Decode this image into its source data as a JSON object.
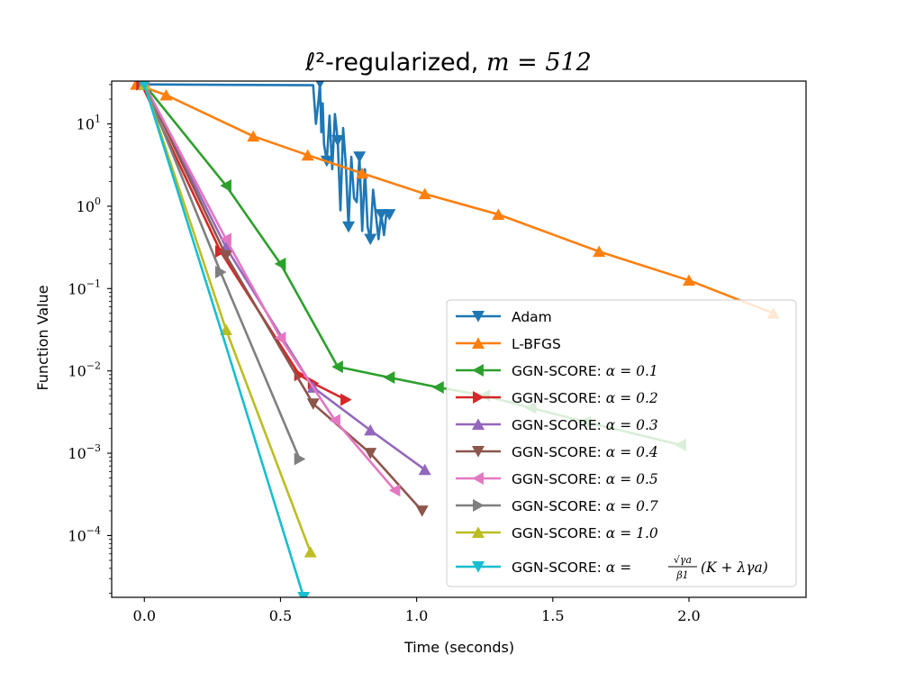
{
  "chart_data": {
    "type": "line",
    "title_prefix": "ℓ²-regularized, ",
    "title_math": "m = 512",
    "xlabel": "Time (seconds)",
    "ylabel": "Function Value",
    "yscale": "log",
    "xlim": [
      -0.12,
      2.43
    ],
    "ylim_log10": [
      -4.75,
      1.52
    ],
    "xticks": [
      0.0,
      0.5,
      1.0,
      1.5,
      2.0
    ],
    "xtick_labels": [
      "0.0",
      "0.5",
      "1.0",
      "1.5",
      "2.0"
    ],
    "yticks_log10": [
      1,
      0,
      -1,
      -2,
      -3,
      -4
    ],
    "ytick_labels": [
      "10",
      "10",
      "10",
      "10",
      "10",
      "10"
    ],
    "ytick_exponents": [
      "1",
      "0",
      "−1",
      "−2",
      "−3",
      "−4"
    ],
    "legend_position": "lower-right",
    "series": [
      {
        "name": "Adam",
        "color": "#1f77b4",
        "marker": "triangle-down",
        "x": [
          0.0,
          0.62,
          0.63,
          0.64,
          0.645,
          0.65,
          0.655,
          0.66,
          0.67,
          0.68,
          0.69,
          0.7,
          0.71,
          0.72,
          0.73,
          0.74,
          0.75,
          0.76,
          0.77,
          0.78,
          0.79,
          0.8,
          0.81,
          0.82,
          0.83,
          0.84,
          0.85,
          0.86,
          0.87,
          0.88,
          0.89,
          0.9
        ],
        "log10_values": [
          1.48,
          1.47,
          1.0,
          1.3,
          1.5,
          0.9,
          1.25,
          0.75,
          0.55,
          1.1,
          0.45,
          1.12,
          0.8,
          -0.05,
          0.95,
          0.5,
          -0.25,
          0.6,
          0.1,
          0.05,
          0.6,
          -0.3,
          0.45,
          -0.25,
          -0.4,
          0.2,
          -0.1,
          -0.4,
          -0.1,
          -0.35,
          -0.05,
          -0.1
        ],
        "marker_every": 4
      },
      {
        "name": "L-BFGS",
        "color": "#ff7f0e",
        "marker": "triangle-up",
        "x": [
          -0.03,
          0.08,
          0.4,
          0.6,
          0.8,
          1.03,
          1.3,
          1.67,
          2.0,
          2.31
        ],
        "log10_values": [
          1.48,
          1.35,
          0.85,
          0.62,
          0.4,
          0.15,
          -0.1,
          -0.55,
          -0.9,
          -1.3
        ],
        "marker_every": 1
      },
      {
        "name": "GGN-SCORE: α = 0.1",
        "label_text": "GGN-SCORE: ",
        "label_math": "α = 0.1",
        "color": "#2ca02c",
        "marker": "triangle-left",
        "x": [
          0.0,
          0.3,
          0.5,
          0.71,
          0.9,
          1.08,
          1.25,
          1.42,
          1.62,
          1.97
        ],
        "log10_values": [
          1.48,
          0.25,
          -0.7,
          -1.95,
          -2.08,
          -2.2,
          -2.3,
          -2.45,
          -2.62,
          -2.9
        ],
        "marker_every": 1
      },
      {
        "name": "GGN-SCORE: α = 0.2",
        "label_text": "GGN-SCORE: ",
        "label_math": "α = 0.2",
        "color": "#d62728",
        "marker": "triangle-right",
        "x": [
          -0.01,
          0.28,
          0.57,
          0.62,
          0.74
        ],
        "log10_values": [
          1.48,
          -0.55,
          -2.05,
          -2.15,
          -2.35
        ],
        "marker_every": 1
      },
      {
        "name": "GGN-SCORE: α = 0.3",
        "label_text": "GGN-SCORE: ",
        "label_math": "α = 0.3",
        "color": "#9467bd",
        "marker": "triangle-up",
        "x": [
          0.0,
          0.3,
          0.62,
          0.83,
          1.03
        ],
        "log10_values": [
          1.48,
          -0.5,
          -2.2,
          -2.72,
          -3.2
        ],
        "marker_every": 1
      },
      {
        "name": "GGN-SCORE: α = 0.4",
        "label_text": "GGN-SCORE: ",
        "label_math": "α = 0.4",
        "color": "#8c564b",
        "marker": "triangle-down",
        "x": [
          0.0,
          0.3,
          0.62,
          0.83,
          1.02
        ],
        "log10_values": [
          1.48,
          -0.6,
          -2.4,
          -3.0,
          -3.7
        ],
        "marker_every": 1
      },
      {
        "name": "GGN-SCORE: α = 0.5",
        "label_text": "GGN-SCORE: ",
        "label_math": "α = 0.5",
        "color": "#e377c2",
        "marker": "triangle-left",
        "x": [
          0.0,
          0.3,
          0.5,
          0.7,
          0.92
        ],
        "log10_values": [
          1.48,
          -0.4,
          -1.6,
          -2.6,
          -3.45
        ],
        "marker_every": 1
      },
      {
        "name": "GGN-SCORE: α = 0.7",
        "label_text": "GGN-SCORE: ",
        "label_math": "α = 0.7",
        "color": "#7f7f7f",
        "marker": "triangle-right",
        "x": [
          0.0,
          0.28,
          0.57
        ],
        "log10_values": [
          1.48,
          -0.8,
          -3.07
        ],
        "marker_every": 1
      },
      {
        "name": "GGN-SCORE: α = 1.0",
        "label_text": "GGN-SCORE: ",
        "label_math": "α = 1.0",
        "color": "#bcbd22",
        "marker": "triangle-up",
        "x": [
          0.0,
          0.3,
          0.61
        ],
        "log10_values": [
          1.48,
          -1.5,
          -4.2
        ],
        "marker_every": 1
      },
      {
        "name": "GGN-SCORE: α = √γa/β1 (K + λγa)",
        "label_text": "GGN-SCORE: ",
        "label_math_prefix": "α = ",
        "label_frac_num_prefix": "√",
        "label_frac_num": "γa",
        "label_frac_den": "β1",
        "label_math_suffix": "(K + λγa)",
        "color": "#17becf",
        "marker": "triangle-down",
        "x": [
          0.0,
          0.3,
          0.585
        ],
        "log10_values": [
          1.48,
          -1.7,
          -4.75
        ],
        "marker_every": 3
      }
    ]
  }
}
